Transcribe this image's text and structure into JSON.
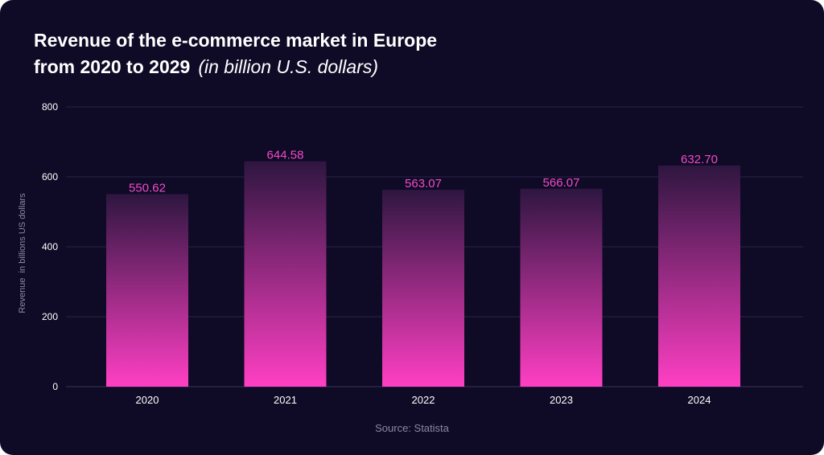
{
  "title_line1": "Revenue of the e-commerce market in Europe",
  "title_line2": "from 2020 to 2029",
  "title_unit": "(in billion U.S. dollars)",
  "source": "Source: Statista",
  "colors": {
    "background": "#0f0a26",
    "bar_bottom": "#ff3fc4",
    "bar_top": "#2e1640",
    "value_label": "#f24bc8",
    "grid": "#2a2444",
    "tick_text": "#ffffff",
    "axis_title": "#8a8aa3"
  },
  "chart_data": {
    "type": "bar",
    "title": "Revenue of the e-commerce market in Europe from 2020 to 2029 (in billion U.S. dollars)",
    "categories": [
      "2020",
      "2021",
      "2022",
      "2023",
      "2024"
    ],
    "values": [
      550.62,
      644.58,
      563.07,
      566.07,
      632.7
    ],
    "value_labels": [
      "550.62",
      "644.58",
      "563.07",
      "566.07",
      "632.70"
    ],
    "xlabel": "",
    "ylabel": "Revenue  in billions US dollars",
    "ylim": [
      0,
      800
    ],
    "yticks": [
      0,
      200,
      400,
      600,
      800
    ],
    "grid": true,
    "legend": "none"
  }
}
